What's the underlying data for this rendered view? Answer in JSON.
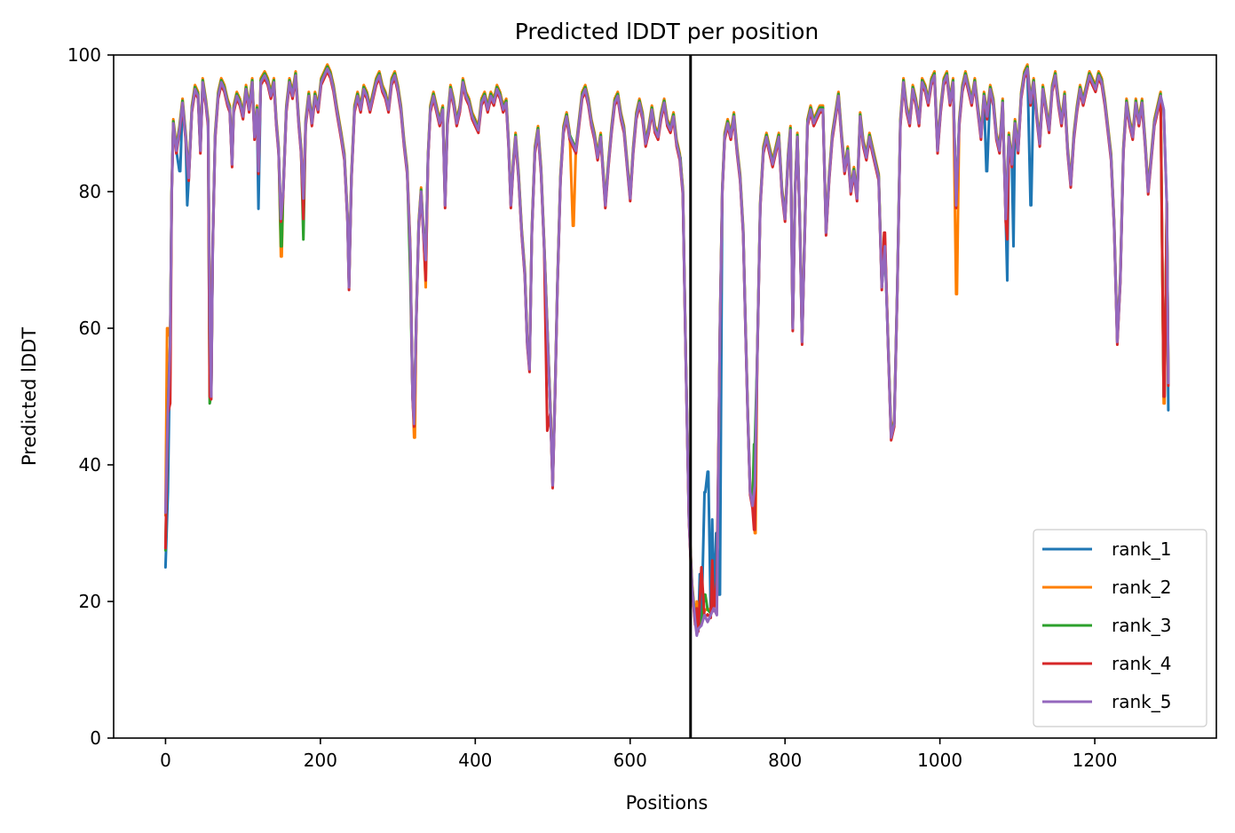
{
  "chart_data": {
    "type": "line",
    "title": "Predicted lDDT per position",
    "xlabel": "Positions",
    "ylabel": "Predicted lDDT",
    "xlim": [
      -67,
      1357
    ],
    "ylim": [
      0,
      100
    ],
    "xticks": [
      0,
      200,
      400,
      600,
      800,
      1000,
      1200
    ],
    "yticks": [
      0,
      20,
      40,
      60,
      80,
      100
    ],
    "grid": false,
    "legend_position": "lower-right",
    "vline_x": 678,
    "series": [
      {
        "name": "rank_1",
        "color": "#1f77b4",
        "offset": 0,
        "overrides": [
          [
            0,
            25
          ],
          [
            3,
            36
          ],
          [
            19,
            83
          ],
          [
            28,
            78
          ],
          [
            120,
            77.5
          ],
          [
            665,
            85
          ],
          [
            690,
            24
          ],
          [
            697,
            36
          ],
          [
            701,
            39
          ],
          [
            706,
            32
          ],
          [
            711,
            30
          ],
          [
            715,
            21
          ],
          [
            760,
            37
          ],
          [
            940,
            46
          ],
          [
            1060,
            83
          ],
          [
            1087,
            67
          ],
          [
            1095,
            72
          ],
          [
            1118,
            78
          ],
          [
            1295,
            48
          ]
        ]
      },
      {
        "name": "rank_2",
        "color": "#ff7f00",
        "offset": 0.6,
        "overrides": [
          [
            2,
            60
          ],
          [
            150,
            70.5
          ],
          [
            322,
            44
          ],
          [
            336,
            66
          ],
          [
            527,
            75
          ],
          [
            686,
            20
          ],
          [
            700,
            19
          ],
          [
            712,
            19.5
          ],
          [
            762,
            30
          ],
          [
            1022,
            65
          ],
          [
            1290,
            49
          ]
        ]
      },
      {
        "name": "rank_3",
        "color": "#2ca02c",
        "offset": 0.3,
        "overrides": [
          [
            0,
            27.5
          ],
          [
            57,
            49
          ],
          [
            150,
            72
          ],
          [
            178,
            73
          ],
          [
            316,
            68
          ],
          [
            686,
            18
          ],
          [
            697,
            21
          ],
          [
            712,
            20.5
          ],
          [
            760,
            43
          ],
          [
            1290,
            50
          ]
        ]
      },
      {
        "name": "rank_4",
        "color": "#d62728",
        "offset": -0.4,
        "overrides": [
          [
            0,
            27.8
          ],
          [
            6,
            49
          ],
          [
            57,
            50
          ],
          [
            178,
            76
          ],
          [
            336,
            67
          ],
          [
            493,
            45
          ],
          [
            686,
            19
          ],
          [
            692,
            25
          ],
          [
            706,
            26
          ],
          [
            712,
            23
          ],
          [
            760,
            30.5
          ],
          [
            928,
            74
          ],
          [
            1087,
            73
          ],
          [
            1290,
            50
          ]
        ]
      },
      {
        "name": "rank_5",
        "color": "#9467bd",
        "offset": 0,
        "overrides": [
          [
            0,
            33
          ],
          [
            686,
            15
          ],
          [
            700,
            17
          ],
          [
            712,
            18
          ]
        ]
      }
    ],
    "base_profile": [
      [
        0,
        32
      ],
      [
        3,
        48
      ],
      [
        6,
        58
      ],
      [
        8,
        80
      ],
      [
        10,
        90
      ],
      [
        14,
        86
      ],
      [
        18,
        89
      ],
      [
        22,
        93
      ],
      [
        26,
        88
      ],
      [
        30,
        82
      ],
      [
        34,
        92
      ],
      [
        38,
        95
      ],
      [
        42,
        94
      ],
      [
        45,
        86
      ],
      [
        48,
        96
      ],
      [
        52,
        93
      ],
      [
        55,
        90
      ],
      [
        57,
        62
      ],
      [
        59,
        50
      ],
      [
        61,
        72
      ],
      [
        64,
        88
      ],
      [
        68,
        94
      ],
      [
        72,
        96
      ],
      [
        76,
        95
      ],
      [
        80,
        93
      ],
      [
        83,
        92
      ],
      [
        86,
        84
      ],
      [
        88,
        92
      ],
      [
        92,
        94
      ],
      [
        96,
        93
      ],
      [
        100,
        91
      ],
      [
        104,
        95
      ],
      [
        108,
        92
      ],
      [
        112,
        96
      ],
      [
        115,
        88
      ],
      [
        118,
        92
      ],
      [
        120,
        83
      ],
      [
        123,
        96
      ],
      [
        128,
        97
      ],
      [
        132,
        96
      ],
      [
        136,
        94
      ],
      [
        140,
        96
      ],
      [
        143,
        90
      ],
      [
        146,
        86
      ],
      [
        149,
        76
      ],
      [
        152,
        80
      ],
      [
        156,
        92
      ],
      [
        160,
        96
      ],
      [
        164,
        94
      ],
      [
        168,
        97
      ],
      [
        172,
        90
      ],
      [
        175,
        86
      ],
      [
        178,
        79
      ],
      [
        181,
        90
      ],
      [
        185,
        94
      ],
      [
        189,
        90
      ],
      [
        193,
        94
      ],
      [
        197,
        92
      ],
      [
        201,
        96
      ],
      [
        205,
        97
      ],
      [
        209,
        98
      ],
      [
        213,
        97
      ],
      [
        217,
        95
      ],
      [
        221,
        92
      ],
      [
        224,
        90
      ],
      [
        227,
        88
      ],
      [
        231,
        85
      ],
      [
        235,
        76
      ],
      [
        237,
        66
      ],
      [
        240,
        82
      ],
      [
        244,
        92
      ],
      [
        248,
        94
      ],
      [
        252,
        92
      ],
      [
        256,
        95
      ],
      [
        260,
        94
      ],
      [
        264,
        92
      ],
      [
        268,
        94
      ],
      [
        272,
        96
      ],
      [
        276,
        97
      ],
      [
        280,
        95
      ],
      [
        284,
        94
      ],
      [
        288,
        92
      ],
      [
        292,
        96
      ],
      [
        296,
        97
      ],
      [
        300,
        95
      ],
      [
        304,
        92
      ],
      [
        308,
        87
      ],
      [
        312,
        83
      ],
      [
        316,
        72
      ],
      [
        319,
        50
      ],
      [
        321,
        46
      ],
      [
        324,
        62
      ],
      [
        327,
        75
      ],
      [
        330,
        80
      ],
      [
        333,
        74
      ],
      [
        336,
        70
      ],
      [
        339,
        85
      ],
      [
        342,
        92
      ],
      [
        346,
        94
      ],
      [
        350,
        92
      ],
      [
        354,
        90
      ],
      [
        358,
        92
      ],
      [
        361,
        78
      ],
      [
        364,
        90
      ],
      [
        368,
        95
      ],
      [
        372,
        93
      ],
      [
        376,
        90
      ],
      [
        380,
        92
      ],
      [
        384,
        96
      ],
      [
        388,
        94
      ],
      [
        392,
        93
      ],
      [
        396,
        91
      ],
      [
        400,
        90
      ],
      [
        404,
        89
      ],
      [
        408,
        93
      ],
      [
        412,
        94
      ],
      [
        416,
        92
      ],
      [
        420,
        94
      ],
      [
        424,
        93
      ],
      [
        428,
        95
      ],
      [
        432,
        94
      ],
      [
        436,
        92
      ],
      [
        440,
        93
      ],
      [
        443,
        87
      ],
      [
        446,
        78
      ],
      [
        449,
        84
      ],
      [
        452,
        88
      ],
      [
        456,
        82
      ],
      [
        460,
        74
      ],
      [
        464,
        68
      ],
      [
        467,
        58
      ],
      [
        470,
        54
      ],
      [
        473,
        74
      ],
      [
        477,
        86
      ],
      [
        481,
        89
      ],
      [
        485,
        83
      ],
      [
        489,
        72
      ],
      [
        493,
        60
      ],
      [
        497,
        48
      ],
      [
        500,
        37
      ],
      [
        503,
        50
      ],
      [
        506,
        66
      ],
      [
        510,
        82
      ],
      [
        514,
        89
      ],
      [
        518,
        91
      ],
      [
        522,
        88
      ],
      [
        526,
        87
      ],
      [
        530,
        86
      ],
      [
        534,
        90
      ],
      [
        538,
        94
      ],
      [
        542,
        95
      ],
      [
        546,
        93
      ],
      [
        550,
        90
      ],
      [
        554,
        88
      ],
      [
        558,
        85
      ],
      [
        562,
        88
      ],
      [
        565,
        83
      ],
      [
        568,
        78
      ],
      [
        572,
        84
      ],
      [
        576,
        89
      ],
      [
        580,
        93
      ],
      [
        584,
        94
      ],
      [
        588,
        91
      ],
      [
        592,
        89
      ],
      [
        596,
        84
      ],
      [
        600,
        79
      ],
      [
        604,
        86
      ],
      [
        608,
        91
      ],
      [
        612,
        93
      ],
      [
        616,
        91
      ],
      [
        620,
        87
      ],
      [
        624,
        89
      ],
      [
        628,
        92
      ],
      [
        632,
        89
      ],
      [
        636,
        88
      ],
      [
        640,
        91
      ],
      [
        644,
        93
      ],
      [
        648,
        90
      ],
      [
        652,
        89
      ],
      [
        656,
        91
      ],
      [
        660,
        87
      ],
      [
        664,
        85
      ],
      [
        668,
        80
      ],
      [
        672,
        55
      ],
      [
        676,
        32
      ],
      [
        680,
        22
      ],
      [
        684,
        17
      ],
      [
        688,
        16
      ],
      [
        692,
        16.5
      ],
      [
        696,
        18
      ],
      [
        700,
        18.5
      ],
      [
        704,
        18
      ],
      [
        708,
        19
      ],
      [
        712,
        30
      ],
      [
        716,
        60
      ],
      [
        719,
        80
      ],
      [
        722,
        88
      ],
      [
        726,
        90
      ],
      [
        730,
        88
      ],
      [
        734,
        91
      ],
      [
        738,
        86
      ],
      [
        742,
        82
      ],
      [
        746,
        74
      ],
      [
        749,
        60
      ],
      [
        752,
        47
      ],
      [
        755,
        36
      ],
      [
        758,
        34
      ],
      [
        761,
        37
      ],
      [
        764,
        55
      ],
      [
        768,
        78
      ],
      [
        772,
        86
      ],
      [
        776,
        88
      ],
      [
        780,
        86
      ],
      [
        784,
        84
      ],
      [
        788,
        86
      ],
      [
        792,
        88
      ],
      [
        796,
        80
      ],
      [
        800,
        76
      ],
      [
        804,
        85
      ],
      [
        807,
        89
      ],
      [
        810,
        60
      ],
      [
        813,
        80
      ],
      [
        816,
        88
      ],
      [
        819,
        76
      ],
      [
        822,
        58
      ],
      [
        825,
        72
      ],
      [
        829,
        90
      ],
      [
        833,
        92
      ],
      [
        837,
        90
      ],
      [
        841,
        91
      ],
      [
        845,
        92
      ],
      [
        849,
        92
      ],
      [
        853,
        74
      ],
      [
        857,
        82
      ],
      [
        861,
        88
      ],
      [
        865,
        91
      ],
      [
        869,
        94
      ],
      [
        873,
        88
      ],
      [
        877,
        83
      ],
      [
        881,
        86
      ],
      [
        885,
        80
      ],
      [
        889,
        83
      ],
      [
        893,
        79
      ],
      [
        897,
        91
      ],
      [
        901,
        87
      ],
      [
        905,
        85
      ],
      [
        909,
        88
      ],
      [
        913,
        86
      ],
      [
        917,
        84
      ],
      [
        921,
        82
      ],
      [
        925,
        66
      ],
      [
        929,
        72
      ],
      [
        933,
        58
      ],
      [
        937,
        44
      ],
      [
        941,
        46
      ],
      [
        945,
        66
      ],
      [
        949,
        90
      ],
      [
        953,
        96
      ],
      [
        957,
        92
      ],
      [
        961,
        90
      ],
      [
        965,
        95
      ],
      [
        969,
        93
      ],
      [
        973,
        90
      ],
      [
        977,
        96
      ],
      [
        981,
        95
      ],
      [
        985,
        93
      ],
      [
        989,
        96
      ],
      [
        993,
        97
      ],
      [
        997,
        86
      ],
      [
        1001,
        92
      ],
      [
        1005,
        96
      ],
      [
        1009,
        97
      ],
      [
        1013,
        93
      ],
      [
        1017,
        96
      ],
      [
        1021,
        78
      ],
      [
        1025,
        90
      ],
      [
        1029,
        95
      ],
      [
        1033,
        97
      ],
      [
        1037,
        95
      ],
      [
        1041,
        93
      ],
      [
        1045,
        96
      ],
      [
        1049,
        92
      ],
      [
        1053,
        88
      ],
      [
        1057,
        94
      ],
      [
        1061,
        91
      ],
      [
        1065,
        95
      ],
      [
        1069,
        93
      ],
      [
        1073,
        88
      ],
      [
        1077,
        86
      ],
      [
        1081,
        93
      ],
      [
        1085,
        76
      ],
      [
        1089,
        88
      ],
      [
        1093,
        84
      ],
      [
        1097,
        90
      ],
      [
        1101,
        86
      ],
      [
        1105,
        94
      ],
      [
        1109,
        97
      ],
      [
        1113,
        98
      ],
      [
        1117,
        93
      ],
      [
        1121,
        96
      ],
      [
        1125,
        91
      ],
      [
        1129,
        87
      ],
      [
        1133,
        95
      ],
      [
        1137,
        92
      ],
      [
        1141,
        89
      ],
      [
        1145,
        95
      ],
      [
        1149,
        97
      ],
      [
        1153,
        93
      ],
      [
        1157,
        90
      ],
      [
        1161,
        94
      ],
      [
        1165,
        86
      ],
      [
        1169,
        81
      ],
      [
        1173,
        88
      ],
      [
        1177,
        92
      ],
      [
        1181,
        95
      ],
      [
        1185,
        93
      ],
      [
        1189,
        95
      ],
      [
        1193,
        97
      ],
      [
        1197,
        96
      ],
      [
        1201,
        95
      ],
      [
        1205,
        97
      ],
      [
        1209,
        96
      ],
      [
        1213,
        93
      ],
      [
        1217,
        89
      ],
      [
        1221,
        85
      ],
      [
        1225,
        75
      ],
      [
        1229,
        58
      ],
      [
        1233,
        67
      ],
      [
        1237,
        86
      ],
      [
        1241,
        93
      ],
      [
        1245,
        90
      ],
      [
        1249,
        88
      ],
      [
        1253,
        93
      ],
      [
        1257,
        90
      ],
      [
        1261,
        93
      ],
      [
        1265,
        87
      ],
      [
        1269,
        80
      ],
      [
        1273,
        85
      ],
      [
        1277,
        90
      ],
      [
        1281,
        92
      ],
      [
        1285,
        94
      ],
      [
        1289,
        92
      ],
      [
        1293,
        78
      ],
      [
        1295,
        52
      ]
    ]
  }
}
